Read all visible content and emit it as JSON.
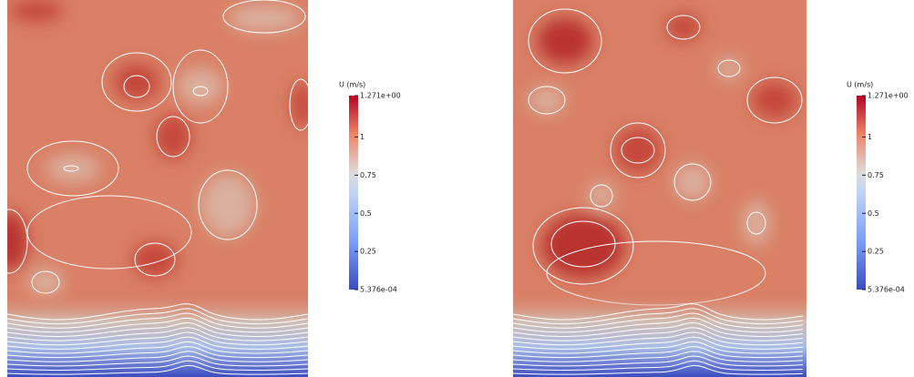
{
  "chart_data": [
    {
      "type": "contour",
      "colorbar_title": "U (m/s)",
      "clim": [
        0.0005376,
        1.271
      ],
      "cticks": [
        {
          "value": 0.0005376,
          "label": "5.376e-04"
        },
        0.25,
        0.5,
        0.75,
        1,
        {
          "value": 1.271,
          "label": "1.271e+00"
        }
      ]
    },
    {
      "type": "contour",
      "colorbar_title": "U (m/s)",
      "clim": [
        0.0005376,
        1.271
      ],
      "cticks": [
        {
          "value": 0.0005376,
          "label": "5.376e-04"
        },
        0.25,
        0.5,
        0.75,
        1,
        {
          "value": 1.271,
          "label": "1.271e+00"
        }
      ]
    }
  ]
}
